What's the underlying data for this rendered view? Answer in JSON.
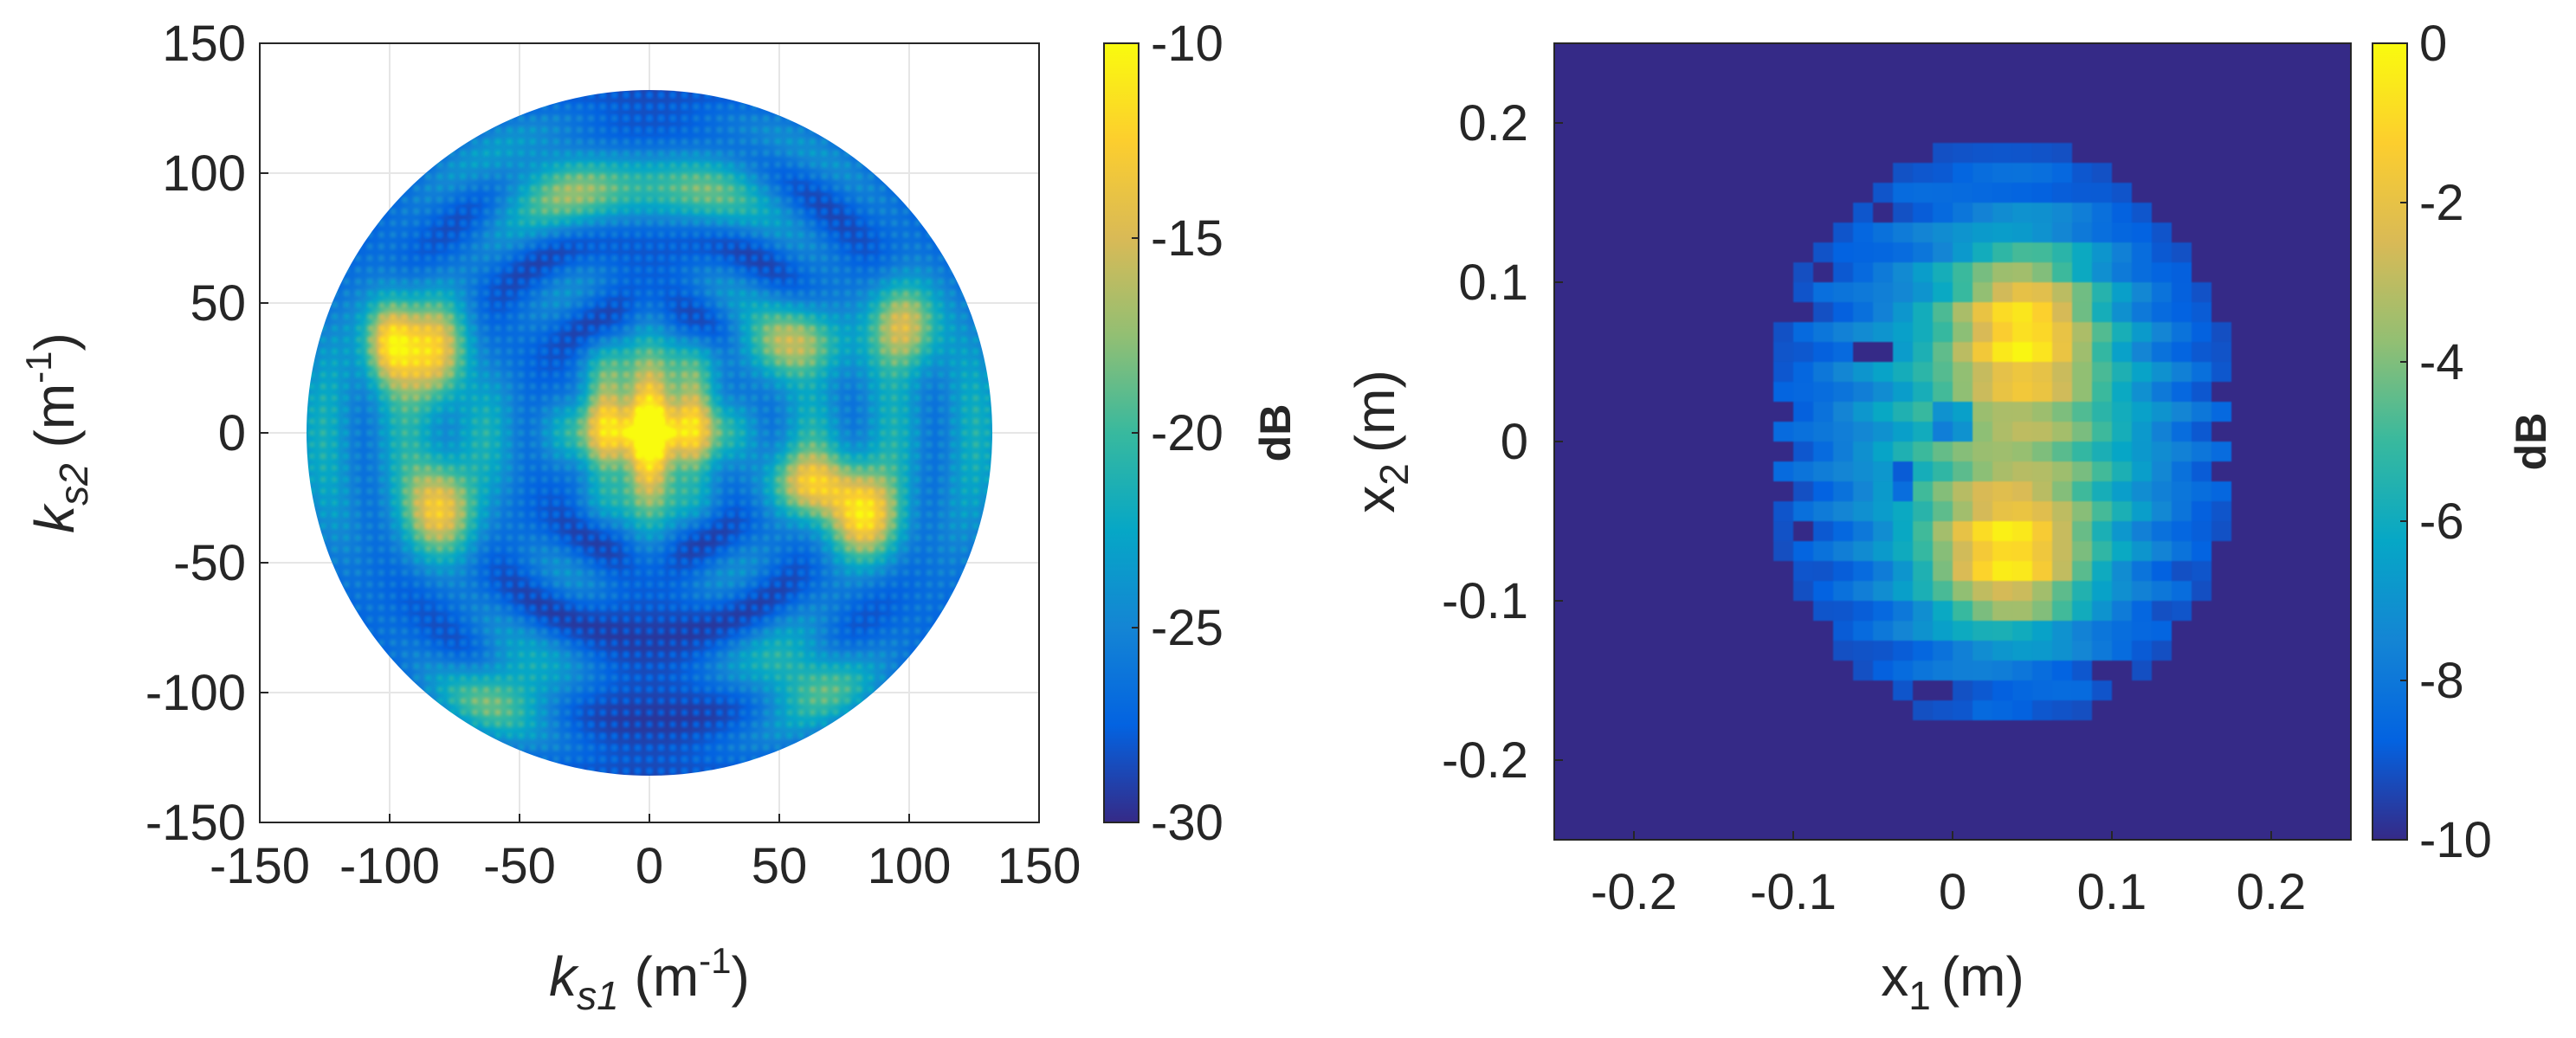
{
  "chart_data": [
    {
      "type": "heatmap",
      "title": "",
      "xlabel": {
        "var": "k",
        "sub": "s1",
        "unit_base": "m",
        "unit_exp": "-1"
      },
      "ylabel": {
        "var": "k",
        "sub": "s2",
        "unit_base": "m",
        "unit_exp": "-1"
      },
      "xlim": [
        -150,
        150
      ],
      "ylim": [
        -150,
        150
      ],
      "x_ticks": [
        "-150",
        "-100",
        "-50",
        "0",
        "50",
        "100",
        "150"
      ],
      "y_ticks": [
        "150",
        "100",
        "50",
        "0",
        "-50",
        "-100",
        "-150"
      ],
      "grid": true,
      "domain_shape": "circle",
      "domain_radius": 132,
      "colormap": "parula",
      "colorbar": {
        "label": "dB",
        "min": -30,
        "max": -10,
        "ticks": [
          "-10",
          "-15",
          "-20",
          "-25",
          "-30"
        ]
      },
      "hotspots": [
        {
          "x": 0,
          "y": 0,
          "sx": 7,
          "sy": 24,
          "amp": 20
        },
        {
          "x": -17,
          "y": 3,
          "sx": 6,
          "sy": 15,
          "amp": 14
        },
        {
          "x": 17,
          "y": 3,
          "sx": 6,
          "sy": 15,
          "amp": 14
        },
        {
          "x": -100,
          "y": 35,
          "sx": 7,
          "sy": 12,
          "amp": 14
        },
        {
          "x": -82,
          "y": 33,
          "sx": 9,
          "sy": 14,
          "amp": 13
        },
        {
          "x": 55,
          "y": 35,
          "sx": 14,
          "sy": 10,
          "amp": 11
        },
        {
          "x": 98,
          "y": 42,
          "sx": 9,
          "sy": 12,
          "amp": 12
        },
        {
          "x": -80,
          "y": -30,
          "sx": 10,
          "sy": 13,
          "amp": 13
        },
        {
          "x": 82,
          "y": -33,
          "sx": 10,
          "sy": 12,
          "amp": 14
        },
        {
          "x": 62,
          "y": -20,
          "sx": 12,
          "sy": 9,
          "amp": 11
        },
        {
          "x": -28,
          "y": 95,
          "sx": 20,
          "sy": 11,
          "amp": 9
        },
        {
          "x": 20,
          "y": 95,
          "sx": 18,
          "sy": 11,
          "amp": 8
        },
        {
          "x": -55,
          "y": -100,
          "sx": 16,
          "sy": 10,
          "amp": 8
        },
        {
          "x": 60,
          "y": -95,
          "sx": 16,
          "sy": 10,
          "amp": 8
        }
      ]
    },
    {
      "type": "heatmap",
      "title": "",
      "xlabel": {
        "var": "x",
        "sub": "1",
        "unit": "(m)"
      },
      "ylabel": {
        "var": "x",
        "sub": "2",
        "unit": "(m)"
      },
      "xlim": [
        -0.25,
        0.25
      ],
      "ylim": [
        -0.25,
        0.25
      ],
      "x_ticks": [
        "-0.2",
        "-0.1",
        "0",
        "0.1",
        "0.2"
      ],
      "y_ticks": [
        "0.2",
        "0.1",
        "0",
        "-0.1",
        "-0.2"
      ],
      "grid": false,
      "pixel_grid": 40,
      "colormap": "parula",
      "colorbar": {
        "label": "dB",
        "min": -10,
        "max": 0,
        "ticks": [
          "0",
          "-2",
          "-4",
          "-6",
          "-8",
          "-10"
        ]
      },
      "blobs": [
        {
          "x": 0.025,
          "y": 0.005,
          "sx": 0.075,
          "sy": 0.095,
          "amp": 5
        },
        {
          "x": 0.045,
          "y": 0.075,
          "sx": 0.032,
          "sy": 0.035,
          "amp": 5.3
        },
        {
          "x": 0.035,
          "y": -0.075,
          "sx": 0.035,
          "sy": 0.032,
          "amp": 5.6
        },
        {
          "x": 0.085,
          "y": 0.0,
          "sx": 0.05,
          "sy": 0.07,
          "amp": 1.2
        }
      ],
      "holes": [
        {
          "x": 0.0,
          "y": 0.01,
          "r": 0.014
        },
        {
          "x": -0.03,
          "y": -0.025,
          "r": 0.01
        },
        {
          "x": -0.05,
          "y": 0.055,
          "r": 0.012
        }
      ]
    }
  ]
}
